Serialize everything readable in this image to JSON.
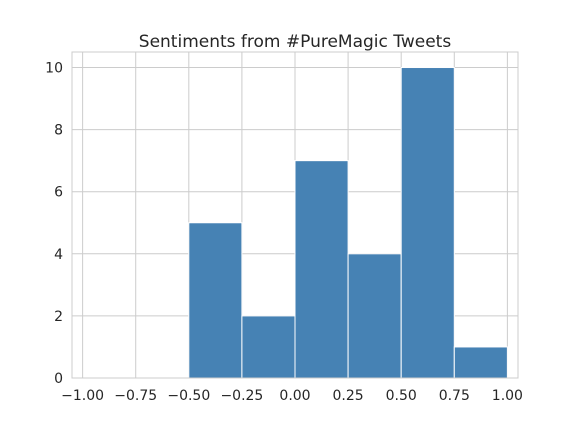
{
  "chart_data": {
    "type": "bar",
    "title": "Sentiments from #PureMagic Tweets",
    "xlabel": "",
    "ylabel": "",
    "bins": [
      {
        "start": -0.5,
        "end": -0.25,
        "value": 5
      },
      {
        "start": -0.25,
        "end": 0.0,
        "value": 2
      },
      {
        "start": 0.0,
        "end": 0.25,
        "value": 7
      },
      {
        "start": 0.25,
        "end": 0.5,
        "value": 4
      },
      {
        "start": 0.5,
        "end": 0.75,
        "value": 10
      },
      {
        "start": 0.75,
        "end": 1.0,
        "value": 1
      }
    ],
    "xlim": [
      -1.05,
      1.05
    ],
    "ylim": [
      0,
      10.5
    ],
    "x_ticks": [
      {
        "value": -1.0,
        "label": "−1.00"
      },
      {
        "value": -0.75,
        "label": "−0.75"
      },
      {
        "value": -0.5,
        "label": "−0.50"
      },
      {
        "value": -0.25,
        "label": "−0.25"
      },
      {
        "value": 0.0,
        "label": "0.00"
      },
      {
        "value": 0.25,
        "label": "0.25"
      },
      {
        "value": 0.5,
        "label": "0.50"
      },
      {
        "value": 0.75,
        "label": "0.75"
      },
      {
        "value": 1.0,
        "label": "1.00"
      }
    ],
    "y_ticks": [
      {
        "value": 0,
        "label": "0"
      },
      {
        "value": 2,
        "label": "2"
      },
      {
        "value": 4,
        "label": "4"
      },
      {
        "value": 6,
        "label": "6"
      },
      {
        "value": 8,
        "label": "8"
      },
      {
        "value": 10,
        "label": "10"
      }
    ],
    "grid": true,
    "legend": "none",
    "colors": {
      "bar": "#4682b4",
      "bar_edge": "#ffffff",
      "grid": "#cccccc",
      "frame": "#cccccc",
      "text": "#262626",
      "background": "#ffffff"
    }
  }
}
